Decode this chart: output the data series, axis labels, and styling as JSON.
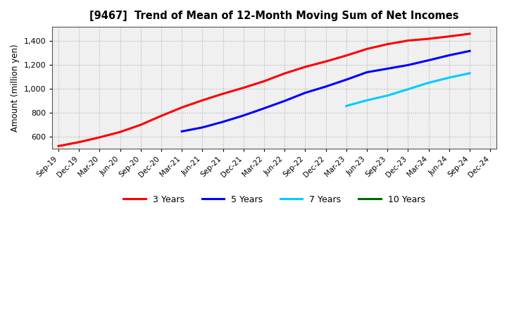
{
  "title": "[9467]  Trend of Mean of 12-Month Moving Sum of Net Incomes",
  "ylabel": "Amount (million yen)",
  "background_color": "#ffffff",
  "plot_bg_color": "#f0f0f0",
  "grid_color": "#aaaaaa",
  "ylim": [
    500,
    1520
  ],
  "yticks": [
    600,
    800,
    1000,
    1200,
    1400
  ],
  "series": {
    "3 Years": {
      "color": "#ff0000",
      "points": [
        [
          "Sep-19",
          522
        ],
        [
          "Dec-19",
          555
        ],
        [
          "Mar-20",
          595
        ],
        [
          "Jun-20",
          640
        ],
        [
          "Sep-20",
          700
        ],
        [
          "Dec-20",
          775
        ],
        [
          "Mar-21",
          845
        ],
        [
          "Jun-21",
          905
        ],
        [
          "Sep-21",
          960
        ],
        [
          "Dec-21",
          1010
        ],
        [
          "Mar-22",
          1065
        ],
        [
          "Jun-22",
          1130
        ],
        [
          "Sep-22",
          1185
        ],
        [
          "Dec-22",
          1230
        ],
        [
          "Mar-23",
          1280
        ],
        [
          "Jun-23",
          1335
        ],
        [
          "Sep-23",
          1375
        ],
        [
          "Dec-23",
          1405
        ],
        [
          "Mar-24",
          1420
        ],
        [
          "Jun-24",
          1440
        ],
        [
          "Sep-24",
          1462
        ]
      ]
    },
    "5 Years": {
      "color": "#0000ff",
      "points": [
        [
          "Mar-21",
          645
        ],
        [
          "Jun-21",
          678
        ],
        [
          "Sep-21",
          725
        ],
        [
          "Dec-21",
          778
        ],
        [
          "Mar-22",
          838
        ],
        [
          "Jun-22",
          900
        ],
        [
          "Sep-22",
          968
        ],
        [
          "Dec-22",
          1020
        ],
        [
          "Mar-23",
          1078
        ],
        [
          "Jun-23",
          1140
        ],
        [
          "Sep-23",
          1170
        ],
        [
          "Dec-23",
          1200
        ],
        [
          "Mar-24",
          1240
        ],
        [
          "Jun-24",
          1282
        ],
        [
          "Sep-24",
          1318
        ]
      ]
    },
    "7 Years": {
      "color": "#00ccff",
      "points": [
        [
          "Mar-23",
          858
        ],
        [
          "Jun-23",
          905
        ],
        [
          "Sep-23",
          945
        ],
        [
          "Dec-23",
          998
        ],
        [
          "Mar-24",
          1052
        ],
        [
          "Jun-24",
          1095
        ],
        [
          "Sep-24",
          1132
        ]
      ]
    },
    "10 Years": {
      "color": "#006600",
      "points": []
    }
  },
  "x_tick_labels": [
    "Sep-19",
    "Dec-19",
    "Mar-20",
    "Jun-20",
    "Sep-20",
    "Dec-20",
    "Mar-21",
    "Jun-21",
    "Sep-21",
    "Dec-21",
    "Mar-22",
    "Jun-22",
    "Sep-22",
    "Dec-22",
    "Mar-23",
    "Jun-23",
    "Sep-23",
    "Dec-23",
    "Mar-24",
    "Jun-24",
    "Sep-24",
    "Dec-24"
  ],
  "legend_labels": [
    "3 Years",
    "5 Years",
    "7 Years",
    "10 Years"
  ],
  "legend_colors": [
    "#ff0000",
    "#0000ff",
    "#00ccff",
    "#006600"
  ]
}
